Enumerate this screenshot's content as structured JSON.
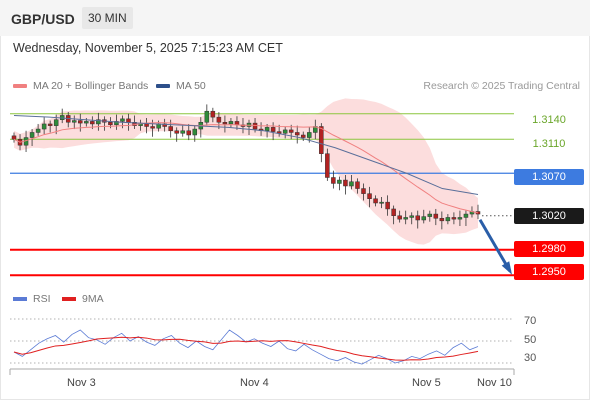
{
  "header": {
    "pair": "GBP/USD",
    "timeframe": "30 MIN"
  },
  "datetime": "Wednesday, November 5, 2025 7:15:23 AM CET",
  "legend": {
    "ma20_label": "MA 20 + Bollinger Bands",
    "ma50_label": "MA 50",
    "copyright": "Research © 2025 Trading Central"
  },
  "levels": {
    "r2": "1.3140",
    "r1": "1.3110",
    "pivot": "1.3070",
    "last": "1.3020",
    "s1": "1.2980",
    "s2": "1.2950"
  },
  "rsi_legend": {
    "rsi_label": "RSI",
    "ma_label": "9MA"
  },
  "rsi_ticks": [
    "70",
    "50",
    "30"
  ],
  "x_labels": [
    "Nov 3",
    "Nov 4",
    "Nov 5",
    "Nov 10"
  ],
  "colors": {
    "resistance": "#8cc63f",
    "pivot": "#3d7be0",
    "support": "#ff0000",
    "last_price_bg": "#1a1a1a",
    "bollinger_fill": "#fbd4d4",
    "ma20": "#f08080",
    "ma50": "#5a6f9a",
    "arrow": "#2a5ea8",
    "rsi": "#5b7bd5",
    "rsi_ma": "#e02020"
  },
  "chart_data": {
    "type": "line",
    "title": "",
    "price_axis_range": [
      1.2935,
      1.3175
    ],
    "x_categories": [
      "Nov 3",
      "Nov 4",
      "Nov 5",
      "Nov 10"
    ],
    "price_close_series": [
      1.311,
      1.3103,
      1.3112,
      1.3118,
      1.3122,
      1.3128,
      1.3126,
      1.3133,
      1.3138,
      1.313,
      1.3132,
      1.3129,
      1.3131,
      1.3128,
      1.3133,
      1.313,
      1.3127,
      1.3131,
      1.3134,
      1.313,
      1.3126,
      1.3129,
      1.3125,
      1.3123,
      1.3128,
      1.3125,
      1.312,
      1.3117,
      1.312,
      1.3115,
      1.3122,
      1.313,
      1.3143,
      1.3136,
      1.313,
      1.3128,
      1.3131,
      1.3127,
      1.3125,
      1.3129,
      1.3122,
      1.312,
      1.3124,
      1.3119,
      1.3117,
      1.3121,
      1.3118,
      1.3115,
      1.3112,
      1.3118,
      1.3125,
      1.3093,
      1.3065,
      1.3058,
      1.3062,
      1.3055,
      1.306,
      1.3052,
      1.3046,
      1.304,
      1.3035,
      1.3036,
      1.3028,
      1.302,
      1.3016,
      1.3018,
      1.302,
      1.3015,
      1.3019,
      1.3022,
      1.3017,
      1.3014,
      1.3018,
      1.3016,
      1.3018,
      1.3022,
      1.3025,
      1.3022
    ],
    "ma50_approx": [
      1.3138,
      1.3136,
      1.3133,
      1.313,
      1.3128,
      1.3126,
      1.3124,
      1.312,
      1.3112,
      1.31,
      1.3085,
      1.307,
      1.3052,
      1.3045
    ],
    "rsi_axis": [
      20,
      80
    ],
    "rsi_levels": [
      70,
      50,
      30
    ],
    "rsi_series": [
      40,
      36,
      42,
      48,
      52,
      55,
      49,
      56,
      60,
      53,
      51,
      47,
      53,
      57,
      50,
      54,
      49,
      46,
      52,
      55,
      48,
      44,
      50,
      45,
      42,
      51,
      60,
      55,
      49,
      52,
      48,
      45,
      50,
      43,
      41,
      47,
      42,
      38,
      34,
      32,
      35,
      31,
      29,
      33,
      37,
      34,
      30,
      32,
      36,
      34,
      38,
      41,
      37,
      44,
      48,
      42,
      45
    ]
  }
}
